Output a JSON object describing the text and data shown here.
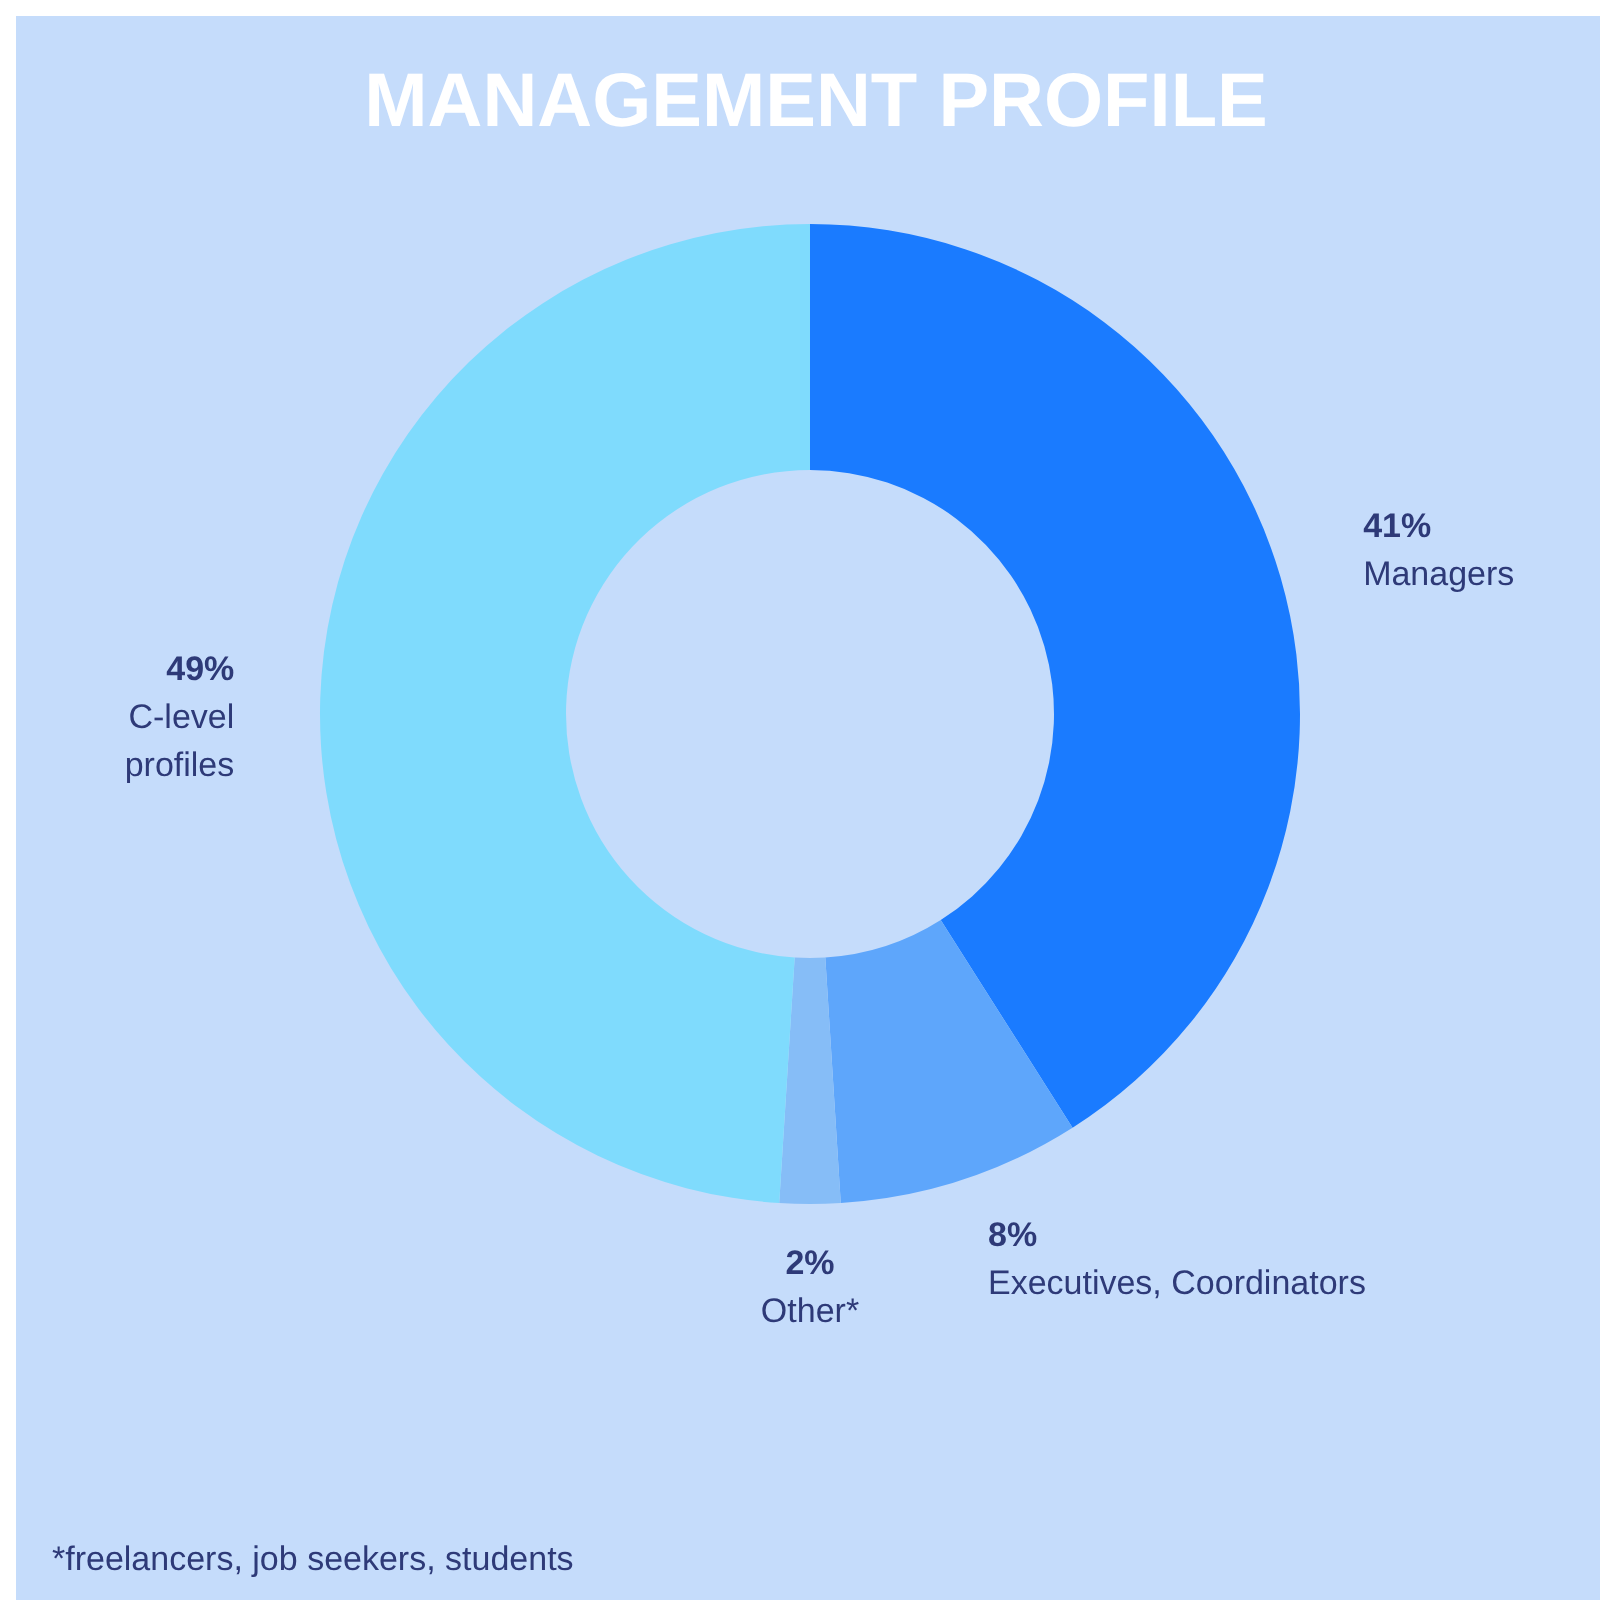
{
  "chart_data": {
    "type": "donut",
    "title": "MANAGEMENT PROFILE",
    "categories": [
      "Managers",
      "Executives, Coordinators",
      "Other*",
      "C-level profiles"
    ],
    "values": [
      41,
      8,
      2,
      49
    ],
    "colors": [
      "#1a7bff",
      "#5ea6fb",
      "#86bdf7",
      "#7fdbfd"
    ],
    "value_labels": [
      "41%",
      "8%",
      "2%",
      "49%"
    ],
    "annotations": [
      "*freelancers, job seekers, students"
    ]
  }
}
